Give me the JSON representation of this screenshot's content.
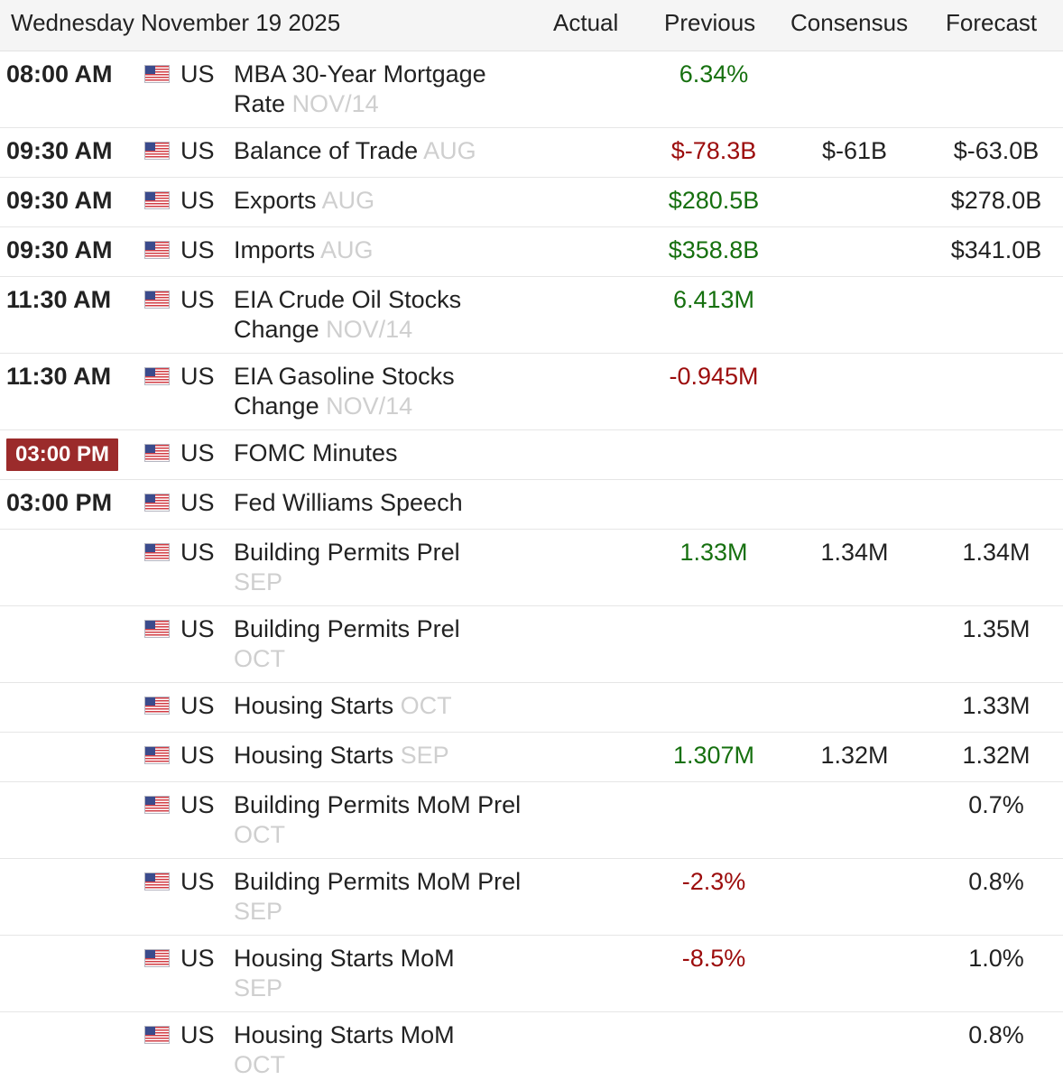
{
  "header": {
    "date": "Wednesday November 19 2025",
    "col_actual": "Actual",
    "col_previous": "Previous",
    "col_consensus": "Consensus",
    "col_forecast": "Forecast"
  },
  "colors": {
    "positive": "#16700f",
    "negative": "#9c0c0c",
    "live_badge": "#9b2b2b"
  },
  "rows": [
    {
      "time": "08:00 AM",
      "country": "US",
      "event": "MBA 30-Year Mortgage Rate",
      "ref": "NOV/14",
      "actual": "",
      "previous": "6.34%",
      "consensus": "",
      "forecast": ""
    },
    {
      "time": "09:30 AM",
      "country": "US",
      "event": "Balance of Trade",
      "ref": "AUG",
      "actual": "",
      "previous": "$-78.3B",
      "consensus": "$-61B",
      "forecast": "$-63.0B"
    },
    {
      "time": "09:30 AM",
      "country": "US",
      "event": "Exports",
      "ref": "AUG",
      "actual": "",
      "previous": "$280.5B",
      "consensus": "",
      "forecast": "$278.0B"
    },
    {
      "time": "09:30 AM",
      "country": "US",
      "event": "Imports",
      "ref": "AUG",
      "actual": "",
      "previous": "$358.8B",
      "consensus": "",
      "forecast": "$341.0B"
    },
    {
      "time": "11:30 AM",
      "country": "US",
      "event": "EIA Crude Oil Stocks Change",
      "ref": "NOV/14",
      "actual": "",
      "previous": "6.413M",
      "consensus": "",
      "forecast": ""
    },
    {
      "time": "11:30 AM",
      "country": "US",
      "event": "EIA Gasoline Stocks Change",
      "ref": "NOV/14",
      "actual": "",
      "previous": "-0.945M",
      "consensus": "",
      "forecast": ""
    },
    {
      "time": "03:00 PM",
      "country": "US",
      "event": "FOMC Minutes",
      "ref": "",
      "actual": "",
      "previous": "",
      "consensus": "",
      "forecast": ""
    },
    {
      "time": "03:00 PM",
      "country": "US",
      "event": "Fed Williams Speech",
      "ref": "",
      "actual": "",
      "previous": "",
      "consensus": "",
      "forecast": ""
    },
    {
      "time": "",
      "country": "US",
      "event": "Building Permits Prel",
      "ref": "SEP",
      "actual": "",
      "previous": "1.33M",
      "consensus": "1.34M",
      "forecast": "1.34M"
    },
    {
      "time": "",
      "country": "US",
      "event": "Building Permits Prel",
      "ref": "OCT",
      "actual": "",
      "previous": "",
      "consensus": "",
      "forecast": "1.35M"
    },
    {
      "time": "",
      "country": "US",
      "event": "Housing Starts",
      "ref": "OCT",
      "actual": "",
      "previous": "",
      "consensus": "",
      "forecast": "1.33M"
    },
    {
      "time": "",
      "country": "US",
      "event": "Housing Starts",
      "ref": "SEP",
      "actual": "",
      "previous": "1.307M",
      "consensus": "1.32M",
      "forecast": "1.32M"
    },
    {
      "time": "",
      "country": "US",
      "event": "Building Permits MoM Prel",
      "ref": "OCT",
      "actual": "",
      "previous": "",
      "consensus": "",
      "forecast": "0.7%"
    },
    {
      "time": "",
      "country": "US",
      "event": "Building Permits MoM Prel",
      "ref": "SEP",
      "actual": "",
      "previous": "-2.3%",
      "consensus": "",
      "forecast": "0.8%"
    },
    {
      "time": "",
      "country": "US",
      "event": "Housing Starts MoM",
      "ref": "SEP",
      "actual": "",
      "previous": "-8.5%",
      "consensus": "",
      "forecast": "1.0%"
    },
    {
      "time": "",
      "country": "US",
      "event": "Housing Starts MoM",
      "ref": "OCT",
      "actual": "",
      "previous": "",
      "consensus": "",
      "forecast": "0.8%"
    }
  ]
}
